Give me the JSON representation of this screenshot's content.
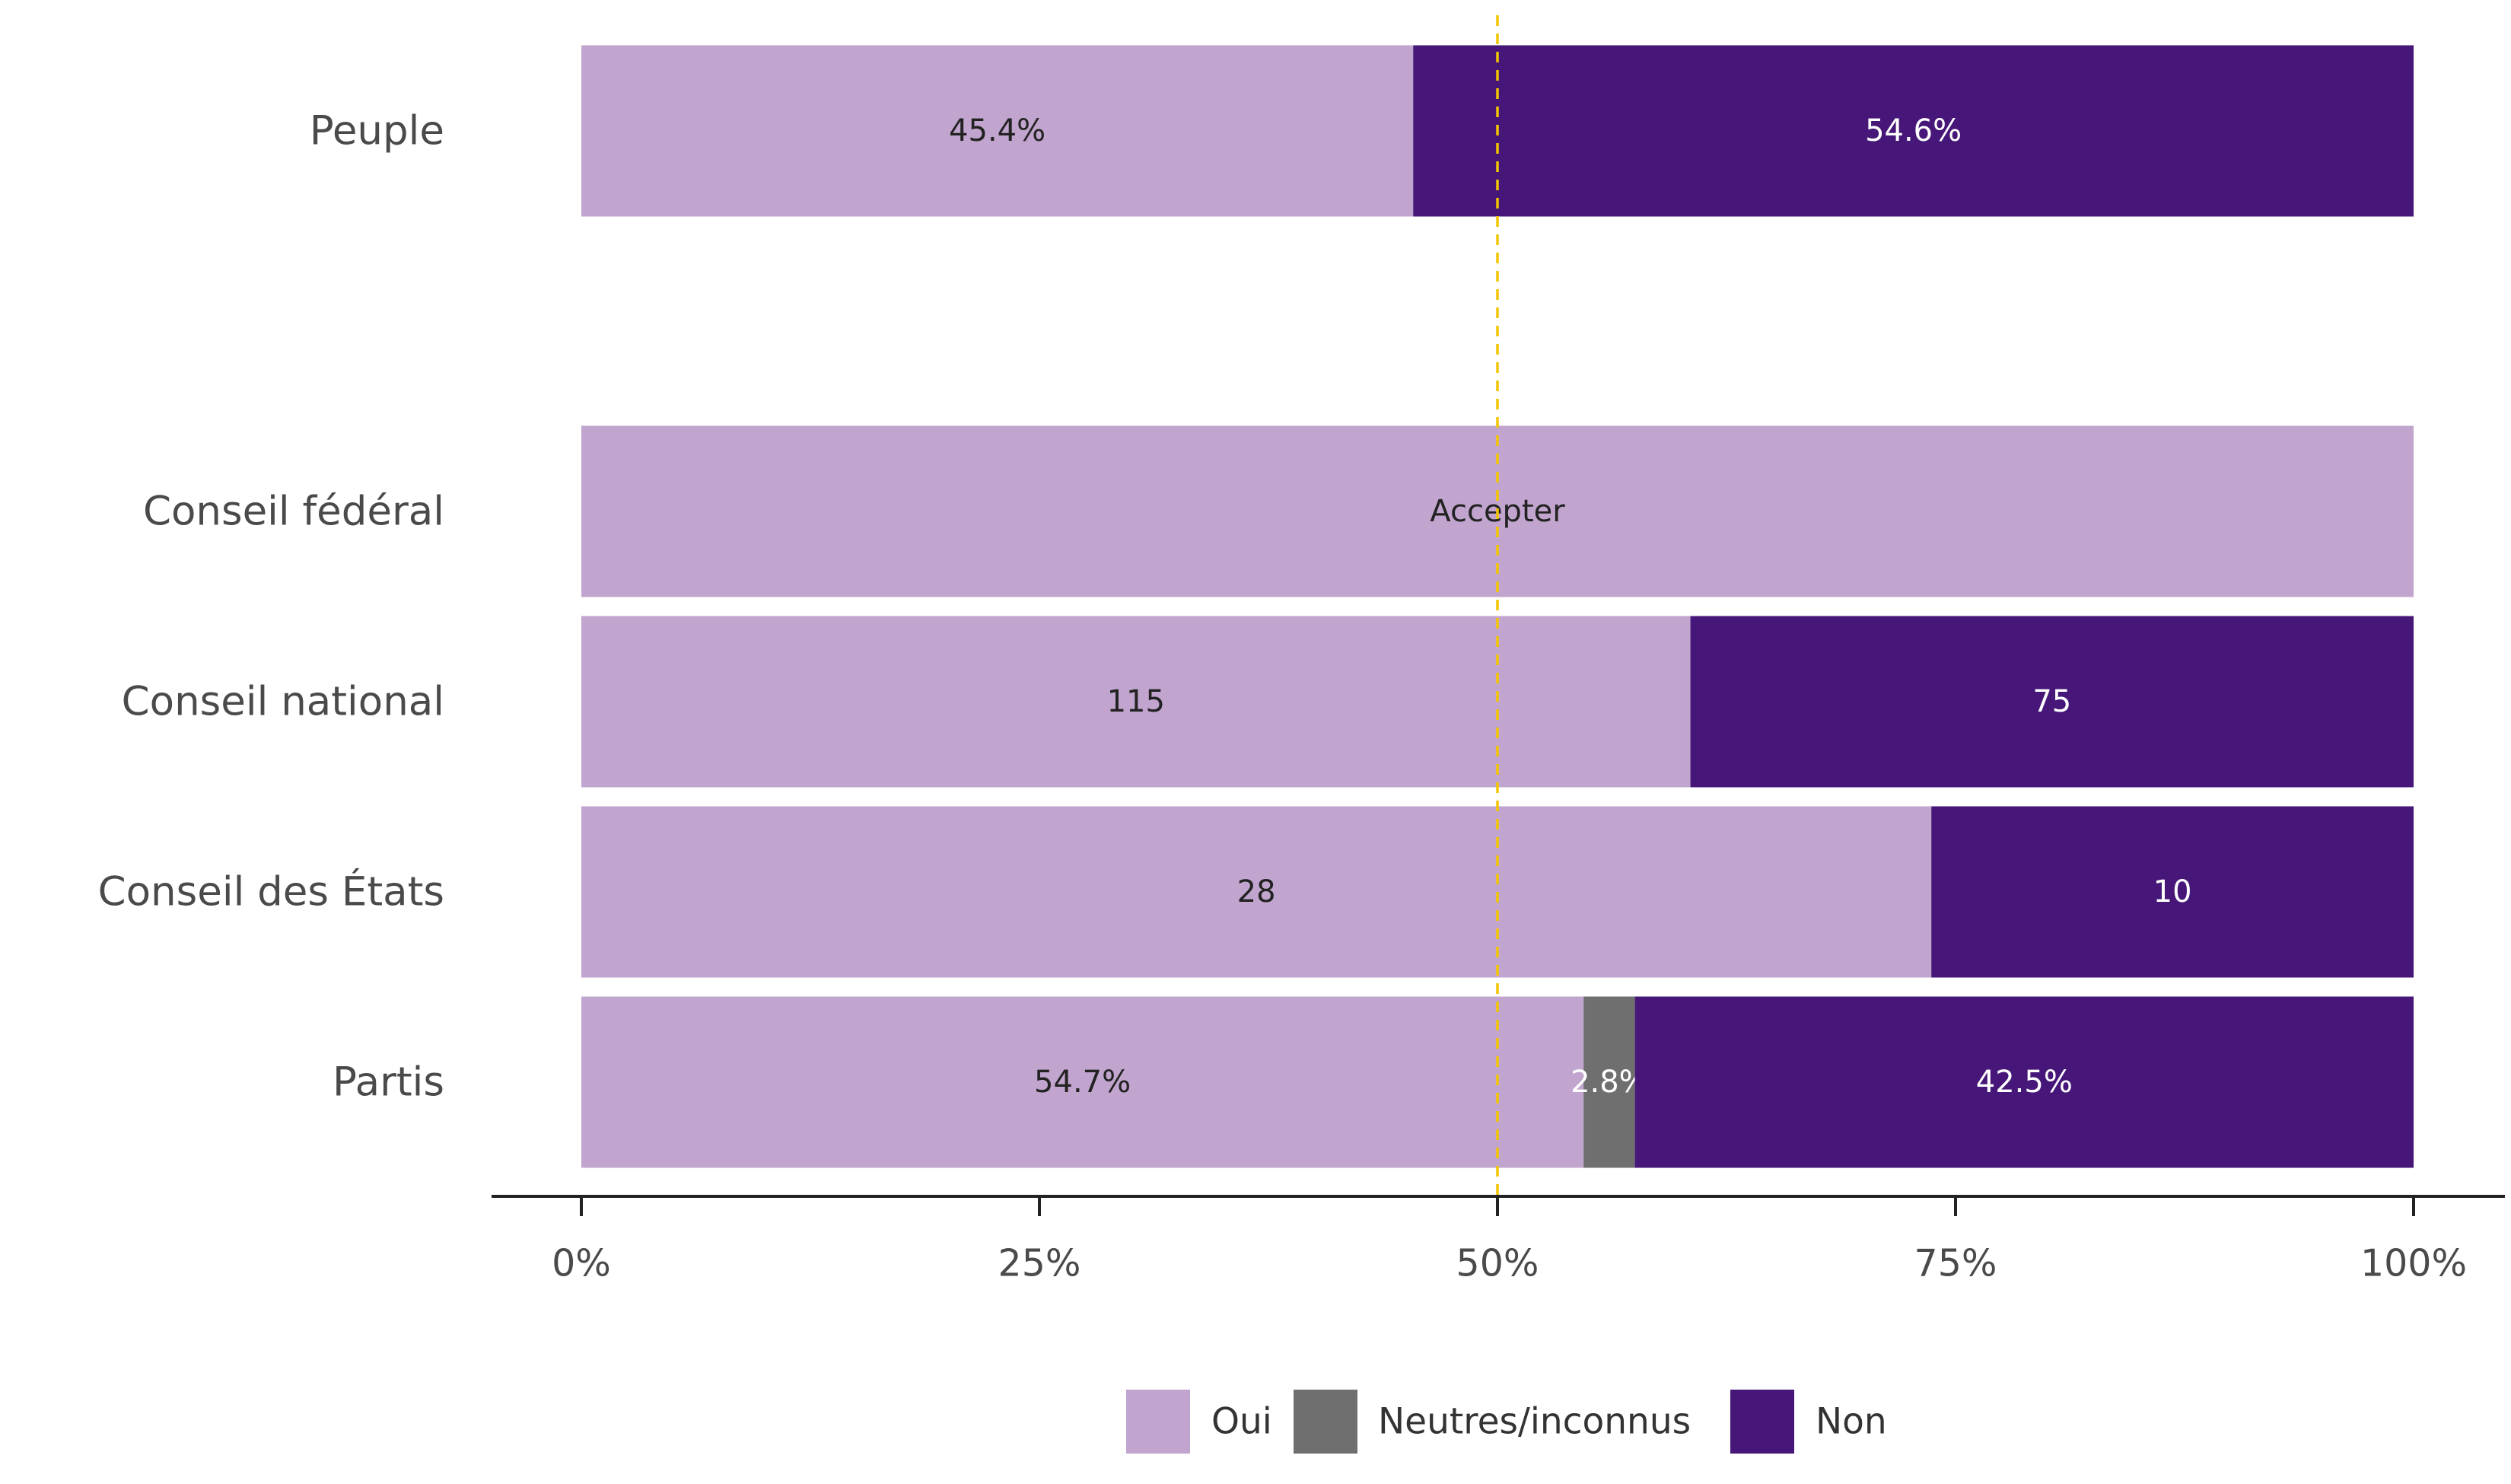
{
  "chart_data": {
    "type": "bar",
    "orientation": "horizontal",
    "stacked": true,
    "x_unit": "percent",
    "xlim": [
      0,
      100
    ],
    "xticks": [
      0,
      25,
      50,
      75,
      100
    ],
    "xtick_labels": [
      "0%",
      "25%",
      "50%",
      "75%",
      "100%"
    ],
    "reference_line": {
      "x": 50,
      "style": "dashed",
      "color": "#F2C500"
    },
    "legend": {
      "placement": "bottom-center",
      "items": [
        "Oui",
        "Neutres/inconnus",
        "Non"
      ]
    },
    "series_colors": {
      "Oui": "#C1A5CE",
      "Neutres/inconnus": "#6F6F6F",
      "Non": "#461778"
    },
    "rows": [
      {
        "category": "Peuple",
        "segments": [
          {
            "series": "Oui",
            "share": 45.4,
            "label": "45.4%"
          },
          {
            "series": "Non",
            "share": 54.6,
            "label": "54.6%"
          }
        ]
      },
      {
        "category": "Conseil fédéral",
        "segments": [
          {
            "series": "Oui",
            "share": 100,
            "label": "Accepter"
          }
        ]
      },
      {
        "category": "Conseil national",
        "segments": [
          {
            "series": "Oui",
            "share": 60.53,
            "label": "115"
          },
          {
            "series": "Non",
            "share": 39.47,
            "label": "75"
          }
        ]
      },
      {
        "category": "Conseil des États",
        "segments": [
          {
            "series": "Oui",
            "share": 73.68,
            "label": "28"
          },
          {
            "series": "Non",
            "share": 26.32,
            "label": "10"
          }
        ]
      },
      {
        "category": "Partis",
        "segments": [
          {
            "series": "Oui",
            "share": 54.7,
            "label": "54.7%"
          },
          {
            "series": "Neutres/inconnus",
            "share": 2.8,
            "label": "2.8%"
          },
          {
            "series": "Non",
            "share": 42.5,
            "label": "42.5%"
          }
        ]
      }
    ]
  }
}
